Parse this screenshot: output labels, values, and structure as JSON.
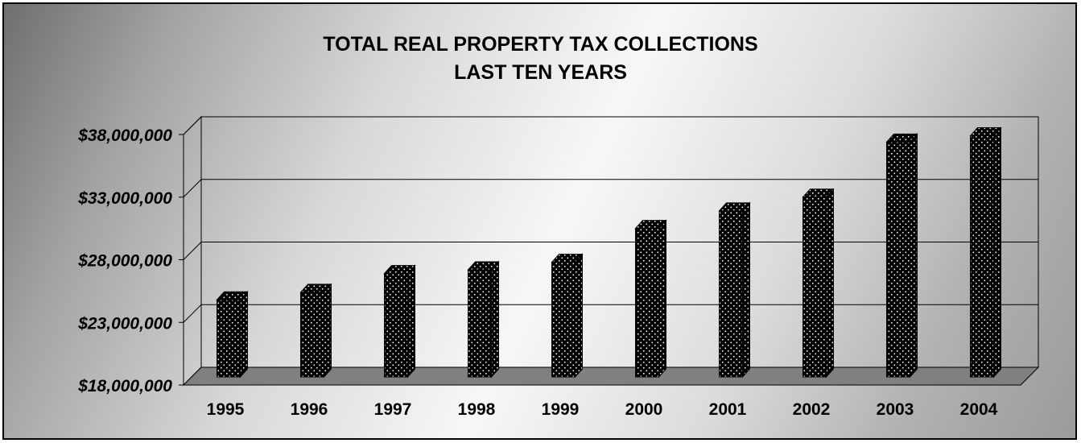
{
  "chart_data": {
    "type": "bar",
    "title": "TOTAL REAL PROPERTY TAX COLLECTIONS",
    "subtitle": "LAST TEN YEARS",
    "categories": [
      "1995",
      "1996",
      "1997",
      "1998",
      "1999",
      "2000",
      "2001",
      "2002",
      "2003",
      "2004"
    ],
    "values": [
      24800000,
      25400000,
      26900000,
      27200000,
      27800000,
      30500000,
      31900000,
      33000000,
      37400000,
      37900000
    ],
    "ylim": [
      18000000,
      38000000
    ],
    "yticks": [
      18000000,
      23000000,
      28000000,
      33000000,
      38000000
    ],
    "ytick_labels": [
      "$18,000,000",
      "$23,000,000",
      "$28,000,000",
      "$33,000,000",
      "$38,000,000"
    ],
    "grid": true,
    "legend": "none",
    "style": "3d",
    "colors": {
      "bar": "#000000",
      "bar_dots": "#ffffff",
      "floor": "#808080",
      "background_dark": "#6f6f6f",
      "background_light": "#f7f7f7"
    }
  }
}
